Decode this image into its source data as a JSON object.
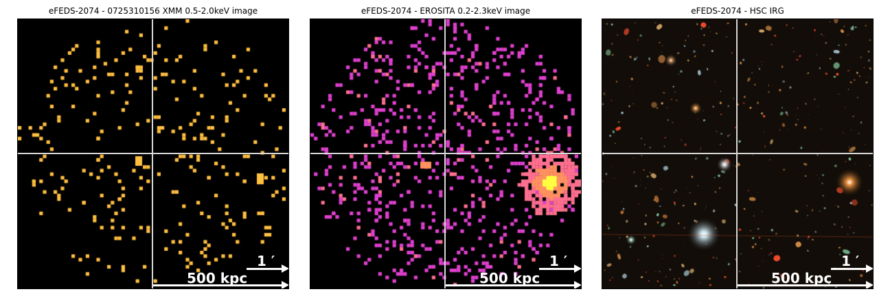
{
  "panels": [
    {
      "title": "eFEDS-2074 - 0725310156 XMM 0.5-2.0keV image",
      "scale_arcmin": "1 ′",
      "scale_kpc": "500 kpc",
      "palette": "xmm"
    },
    {
      "title": "eFEDS-2074 -  EROSITA 0.2-2.3keV image",
      "scale_arcmin": "1 ′",
      "scale_kpc": "500 kpc",
      "palette": "erosita"
    },
    {
      "title": "eFEDS-2074 - HSC IRG",
      "scale_arcmin": "1 ′",
      "scale_kpc": "500 kpc",
      "palette": "optical"
    }
  ],
  "colors": {
    "xmm_pixel": "#ffbf40",
    "erosita_low": "#e040d0",
    "erosita_mid": "#ff7090",
    "erosita_high": "#ffff40",
    "crosshair": "#d8d8d8",
    "scalebar": "#ffffff"
  }
}
